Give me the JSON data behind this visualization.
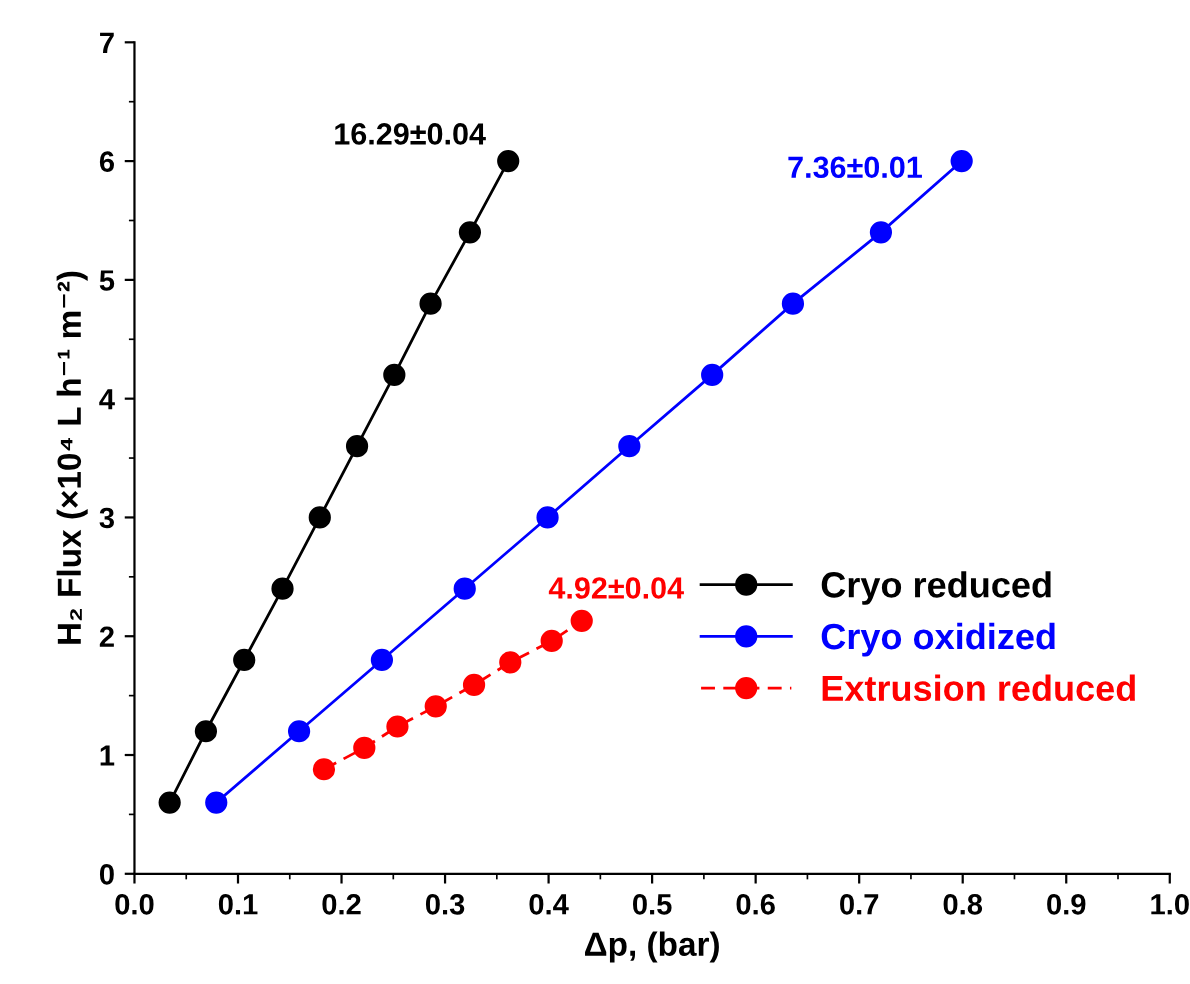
{
  "chart_data": {
    "type": "line",
    "xlabel": "Δp, (bar)",
    "ylabel": "H₂ Flux (×10⁴ L h⁻¹ m⁻²)",
    "xlim": [
      0,
      1.0
    ],
    "xticks": [
      {
        "value": 0,
        "label": "0.0"
      },
      0.1,
      0.2,
      0.3,
      0.4,
      0.5,
      0.6,
      0.7,
      0.8,
      0.9,
      {
        "value": 1.0,
        "label": "1.0"
      }
    ],
    "ylim": [
      0,
      7
    ],
    "yticks": [
      0,
      1,
      2,
      3,
      4,
      5,
      6,
      7
    ],
    "grid": false,
    "legend": "bottom right",
    "marker": "circle",
    "series": [
      {
        "name": "Cryo reduced",
        "color": "#000000",
        "line_style": "solid",
        "x": [
          0.034,
          0.069,
          0.106,
          0.143,
          0.179,
          0.215,
          0.251,
          0.286,
          0.324,
          0.361
        ],
        "values": [
          0.6,
          1.2,
          1.8,
          2.4,
          3.0,
          3.6,
          4.2,
          4.8,
          5.4,
          6.0
        ]
      },
      {
        "name": "Cryo oxidized",
        "color": "#0000ff",
        "line_style": "solid",
        "x": [
          0.079,
          0.159,
          0.239,
          0.319,
          0.399,
          0.478,
          0.558,
          0.636,
          0.721,
          0.799
        ],
        "values": [
          0.6,
          1.2,
          1.8,
          2.4,
          3.0,
          3.6,
          4.2,
          4.8,
          5.4,
          6.0
        ]
      },
      {
        "name": "Extrusion reduced",
        "color": "#ff0000",
        "line_style": "dashed",
        "x": [
          0.183,
          0.222,
          0.254,
          0.291,
          0.328,
          0.363,
          0.403,
          0.432
        ],
        "values": [
          0.88,
          1.06,
          1.24,
          1.41,
          1.59,
          1.78,
          1.96,
          2.13
        ]
      }
    ],
    "annotations": [
      {
        "text": "16.29±0.04",
        "x": 0.361,
        "y": 6.0
      },
      {
        "text": "7.36±0.01",
        "x": 0.799,
        "y": 6.0
      },
      {
        "text": "4.92±0.04",
        "x": 0.432,
        "y": 2.13
      }
    ]
  }
}
